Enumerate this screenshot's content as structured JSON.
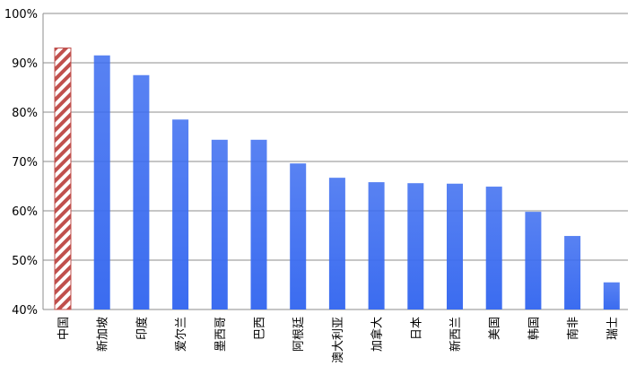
{
  "chart_data": {
    "type": "bar",
    "categories": [
      "中国",
      "新加坡",
      "印度",
      "爱尔兰",
      "墨西哥",
      "巴西",
      "阿根廷",
      "澳大利亚",
      "加拿大",
      "日本",
      "新西兰",
      "美国",
      "韩国",
      "南非",
      "瑞士"
    ],
    "values": [
      93,
      91.5,
      87.5,
      78.5,
      74.4,
      74.4,
      69.6,
      66.7,
      65.8,
      65.6,
      65.5,
      64.9,
      59.8,
      54.9,
      45.5
    ],
    "colors": [
      "#c0504d",
      "#3b6cf0",
      "#3b6cf0",
      "#3b6cf0",
      "#3b6cf0",
      "#3b6cf0",
      "#3b6cf0",
      "#3b6cf0",
      "#3b6cf0",
      "#3b6cf0",
      "#3b6cf0",
      "#3b6cf0",
      "#3b6cf0",
      "#3b6cf0",
      "#3b6cf0"
    ],
    "ylim": [
      40,
      100
    ],
    "yticks": [
      {
        "value": 40,
        "label": "40%"
      },
      {
        "value": 50,
        "label": "50%"
      },
      {
        "value": 60,
        "label": "60%"
      },
      {
        "value": 70,
        "label": "70%"
      },
      {
        "value": 80,
        "label": "80%"
      },
      {
        "value": 90,
        "label": "90%"
      },
      {
        "value": 100,
        "label": "100%"
      }
    ],
    "grid": true
  }
}
